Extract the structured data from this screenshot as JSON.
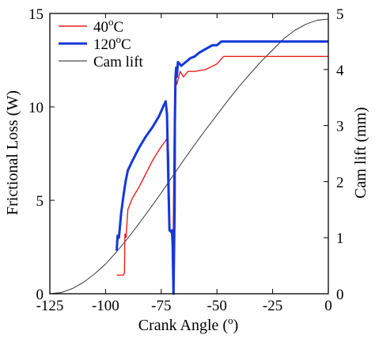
{
  "chart_data": {
    "type": "line",
    "xlabel": "Crank Angle (",
    "xlabel_unit": "o",
    "xlabel_close": ")",
    "ylabel_left": "Frictional Loss (W)",
    "ylabel_right": "Cam lift (mm)",
    "xlim": [
      -125,
      0
    ],
    "ylim_left": [
      0,
      15
    ],
    "ylim_right": [
      0,
      5
    ],
    "xticks": [
      -125,
      -100,
      -75,
      -50,
      -25,
      0
    ],
    "yticks_left": [
      0,
      5,
      10,
      15
    ],
    "yticks_right": [
      0,
      1,
      2,
      3,
      4,
      5
    ],
    "legend_position": "top-left",
    "series": [
      {
        "name": "40",
        "name_sup": "o",
        "name_tail": "C",
        "axis": "left",
        "color": "#e8211d",
        "width": 1.4,
        "x": [
          -95,
          -93,
          -92,
          -91.5,
          -91.3,
          -90.8,
          -90,
          -88,
          -85,
          -82,
          -79,
          -76,
          -73,
          -72,
          -71.6,
          -71.2,
          -70.6,
          -70,
          -69.6,
          -69.3,
          -68.9,
          -68.7,
          -68,
          -66.5,
          -65,
          -63,
          -60,
          -55,
          -50,
          -47,
          -40,
          -30,
          -20,
          -10,
          0
        ],
        "y": [
          1.0,
          1.0,
          1.0,
          1.1,
          3.2,
          3.0,
          4.5,
          5.1,
          5.7,
          6.4,
          7.1,
          7.7,
          8.2,
          8.4,
          7.2,
          3.5,
          3.4,
          2.5,
          3.2,
          8.0,
          11.0,
          11.8,
          11.2,
          11.9,
          11.6,
          11.9,
          11.9,
          12.0,
          12.3,
          12.7,
          12.7,
          12.7,
          12.7,
          12.7,
          12.7
        ]
      },
      {
        "name": "120",
        "name_sup": "o",
        "name_tail": "C",
        "axis": "left",
        "color": "#1438d8",
        "width": 3,
        "x": [
          -95,
          -94.6,
          -94,
          -93,
          -92,
          -91,
          -90,
          -88,
          -85,
          -82,
          -79,
          -76,
          -73.8,
          -73,
          -72.4,
          -71.8,
          -71.3,
          -70.5,
          -70,
          -69.5,
          -69,
          -68.9,
          -68.6,
          -68.3,
          -68,
          -67.5,
          -66,
          -64,
          -62,
          -60,
          -58,
          -55,
          -52,
          -50,
          -48,
          -46,
          -40,
          -30,
          -20,
          -10,
          0
        ],
        "y": [
          2.3,
          3.1,
          3.0,
          4.3,
          5.2,
          6.0,
          6.6,
          7.1,
          7.8,
          8.4,
          8.9,
          9.5,
          10.1,
          10.3,
          9.6,
          6.0,
          3.4,
          3.3,
          3.4,
          0,
          4.5,
          9.0,
          11.6,
          12.1,
          11.6,
          12.4,
          12.2,
          12.4,
          12.6,
          12.7,
          12.9,
          13.1,
          13.3,
          13.3,
          13.5,
          13.5,
          13.5,
          13.5,
          13.5,
          13.5,
          13.5
        ]
      },
      {
        "name": "Cam lift",
        "axis": "right",
        "color": "#222222",
        "width": 0.9,
        "x": [
          -125,
          -120,
          -115,
          -110,
          -105,
          -100,
          -95,
          -90,
          -85,
          -80,
          -75,
          -70,
          -65,
          -60,
          -55,
          -50,
          -45,
          -40,
          -35,
          -30,
          -25,
          -20,
          -15,
          -10,
          -5,
          0
        ],
        "y": [
          0,
          0.02,
          0.09,
          0.2,
          0.35,
          0.53,
          0.75,
          0.99,
          1.25,
          1.52,
          1.8,
          2.09,
          2.38,
          2.66,
          2.93,
          3.19,
          3.45,
          3.7,
          3.93,
          4.15,
          4.35,
          4.55,
          4.7,
          4.81,
          4.88,
          4.9
        ]
      }
    ]
  }
}
